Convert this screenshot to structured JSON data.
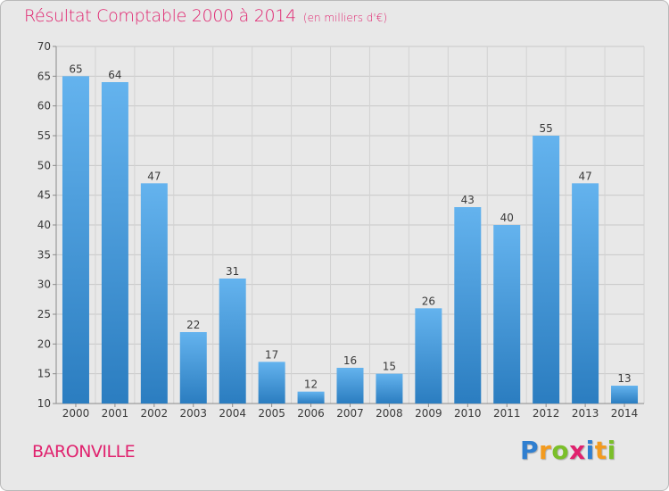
{
  "header": {
    "title": "Résultat Comptable 2000 à 2014",
    "subtitle": "(en milliers d'€)"
  },
  "commune": "BARONVILLE",
  "logo": {
    "letters": [
      "P",
      "r",
      "o",
      "x",
      "i",
      "t",
      "i"
    ],
    "colors": [
      "#2f7fd0",
      "#f39b1f",
      "#7bbf2a",
      "#e0226e",
      "#2f7fd0",
      "#f39b1f",
      "#7bbf2a"
    ]
  },
  "chart_data": {
    "type": "bar",
    "categories": [
      "2000",
      "2001",
      "2002",
      "2003",
      "2004",
      "2005",
      "2006",
      "2007",
      "2008",
      "2009",
      "2010",
      "2011",
      "2012",
      "2013",
      "2014"
    ],
    "values": [
      65,
      64,
      47,
      22,
      31,
      17,
      12,
      16,
      15,
      26,
      43,
      40,
      55,
      47,
      13
    ],
    "title": "Résultat Comptable 2000 à 2014",
    "ylim": [
      10,
      70
    ],
    "yticks": [
      10,
      15,
      20,
      25,
      30,
      35,
      40,
      45,
      50,
      55,
      60,
      65,
      70
    ],
    "grid": true,
    "bar_color_top": "#64b3ee",
    "bar_color_bottom": "#2b7dc0"
  }
}
